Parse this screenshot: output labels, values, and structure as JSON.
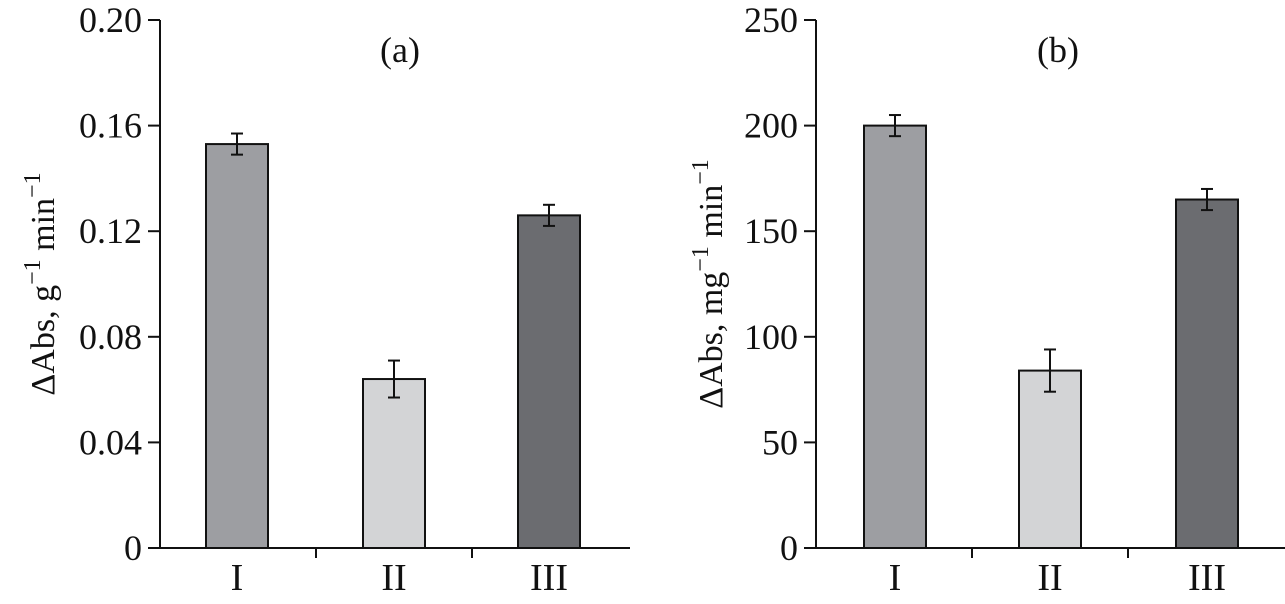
{
  "chart_data": [
    {
      "type": "bar",
      "title": "(a)",
      "xlabel": "",
      "ylabel": "ΔAbs, g",
      "ylabel_sup1": "−1",
      "ylabel_unit2": " min",
      "ylabel_sup2": "−1",
      "categories": [
        "I",
        "II",
        "III"
      ],
      "values": [
        0.153,
        0.064,
        0.126
      ],
      "errors": [
        0.004,
        0.007,
        0.004
      ],
      "colors": [
        "#9d9ea2",
        "#d3d4d6",
        "#6b6c70"
      ],
      "ylim": [
        0,
        0.2
      ],
      "yticks": [
        0,
        0.04,
        0.08,
        0.12,
        0.16,
        0.2
      ],
      "ytick_labels": [
        "0",
        "0.04",
        "0.08",
        "0.12",
        "0.16",
        "0.20"
      ],
      "grid": false
    },
    {
      "type": "bar",
      "title": "(b)",
      "xlabel": "",
      "ylabel": "ΔAbs, mg",
      "ylabel_sup1": "−1",
      "ylabel_unit2": " min",
      "ylabel_sup2": "−1",
      "categories": [
        "I",
        "II",
        "III"
      ],
      "values": [
        200,
        84,
        165
      ],
      "errors": [
        5,
        10,
        5
      ],
      "colors": [
        "#9d9ea2",
        "#d3d4d6",
        "#6b6c70"
      ],
      "ylim": [
        0,
        250
      ],
      "yticks": [
        0,
        50,
        100,
        150,
        200,
        250
      ],
      "ytick_labels": [
        "0",
        "50",
        "100",
        "150",
        "200",
        "250"
      ],
      "grid": false
    }
  ]
}
